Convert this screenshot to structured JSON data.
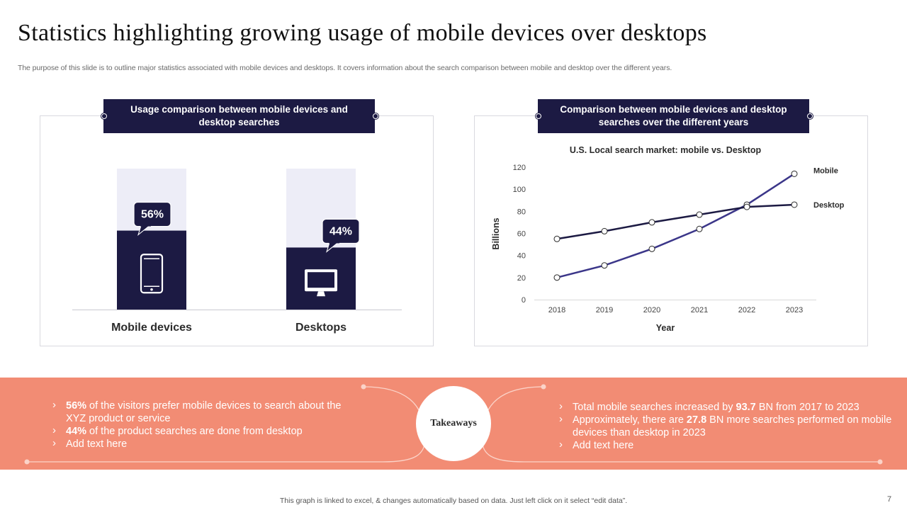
{
  "slide": {
    "title": "Statistics highlighting growing usage of mobile devices over desktops",
    "subtitle": "The purpose of this slide is to outline major statistics associated with mobile devices and desktops. It covers information about the search comparison between mobile and desktop over the different years.",
    "footer_note": "This graph is linked to excel, & changes automatically based on data. Just left click on it select “edit data”.",
    "page_number": "7"
  },
  "left_panel": {
    "header": "Usage comparison between mobile devices and desktop searches"
  },
  "right_panel": {
    "header": "Comparison between mobile devices and desktop searches over the different years"
  },
  "takeaways": {
    "label": "Takeaways",
    "left": [
      {
        "highlight": "56%",
        "text": " of the visitors prefer mobile devices to search about the XYZ  product or service"
      },
      {
        "highlight": "44%",
        "text": " of the product searches are done from desktop"
      },
      {
        "highlight": "",
        "text": "Add text here"
      }
    ],
    "right": [
      {
        "pre": "Total mobile searches increased by ",
        "highlight": "93.7",
        "text": " BN from 2017 to 2023"
      },
      {
        "pre": "Approximately, there are ",
        "highlight": "27.8",
        "text": " BN more searches performed on mobile devices than desktop in 2023"
      },
      {
        "pre": "",
        "highlight": "",
        "text": "Add text here"
      }
    ]
  },
  "colors": {
    "navy": "#1c1a43",
    "light_bar": "#ededf7",
    "mobile_line": "#3b3689",
    "desktop_line": "#1c1a43",
    "coral": "#f28c74"
  },
  "chart_data": [
    {
      "type": "bar",
      "title": "Usage comparison between mobile devices and desktop searches",
      "categories": [
        "Mobile devices",
        "Desktops"
      ],
      "values": [
        56,
        44
      ],
      "value_labels": [
        "56%",
        "44%"
      ],
      "icons": [
        "mobile-phone-icon",
        "desktop-monitor-icon"
      ],
      "ylim": [
        0,
        100
      ],
      "xlabel": "",
      "ylabel": ""
    },
    {
      "type": "line",
      "title": "U.S. Local search market: mobile vs. Desktop",
      "x": [
        2018,
        2019,
        2020,
        2021,
        2022,
        2023
      ],
      "series": [
        {
          "name": "Mobile",
          "values": [
            20,
            31,
            46,
            64,
            86,
            114
          ]
        },
        {
          "name": "Desktop",
          "values": [
            55,
            62,
            70,
            77,
            84,
            86
          ]
        }
      ],
      "xlabel": "Year",
      "ylabel": "Billions",
      "ylim": [
        0,
        120
      ],
      "yticks": [
        0,
        20,
        40,
        60,
        80,
        100,
        120
      ],
      "legend": "right-end labels"
    }
  ]
}
